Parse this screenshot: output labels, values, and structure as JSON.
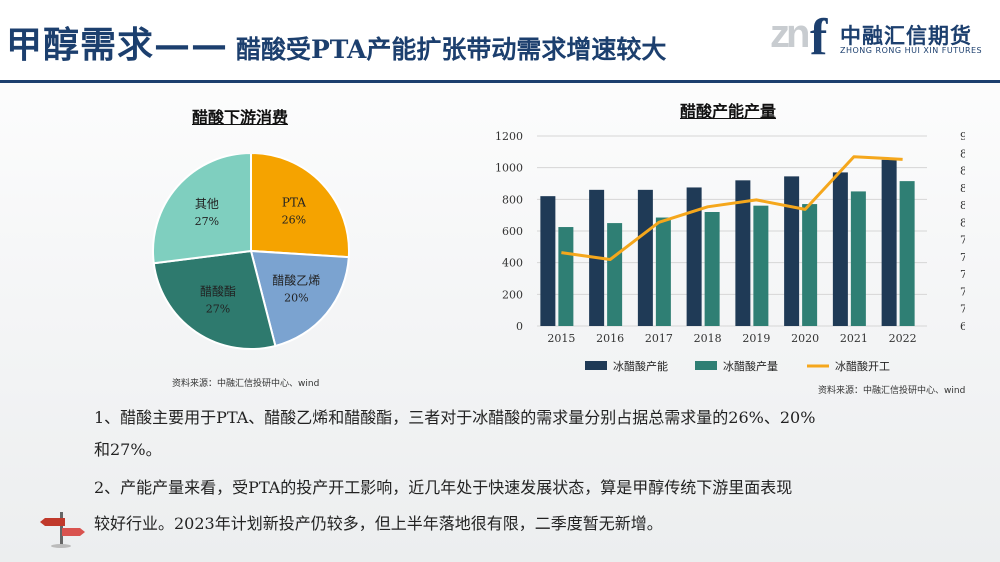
{
  "header": {
    "title_main": "甲醇需求——",
    "title_sub": "醋酸受PTA产能扩张带动需求增速较大",
    "logo_mark": "zn",
    "logo_f": "f",
    "logo_cn": "中融汇信期货",
    "logo_en": "ZHONG RONG HUI XIN FUTURES"
  },
  "pie": {
    "title": "醋酸下游消费",
    "source": "资料来源：中融汇信投研中心、wind"
  },
  "bar": {
    "title": "醋酸产能产量",
    "source": "资料来源：中融汇信投研中心、wind"
  },
  "text": {
    "line1": "1、醋酸主要用于PTA、醋酸乙烯和醋酸酯，三者对于冰醋酸的需求量分别占据总需求量的26%、20%",
    "line2": "和27%。",
    "line3": "2、产能产量来看，受PTA的投产开工影响，近几年处于快速发展状态，算是甲醇传统下游里面表现",
    "line4": "较好行业。2023年计划新投产仍较多，但上半年落地很有限，二季度暂无新增。"
  },
  "colors": {
    "title_blue": "#1c3f6e",
    "pta": "#f5a300",
    "vac": "#7ba3d0",
    "ester": "#2e7a6e",
    "other": "#7fcfbf",
    "capacity": "#1f3a56",
    "output": "#2f7f74",
    "rate": "#f5a71c"
  },
  "chart_data": [
    {
      "type": "pie",
      "title": "醋酸下游消费",
      "slices": [
        {
          "label": "PTA",
          "value": 26,
          "pct_label": "26%",
          "color": "#f5a300"
        },
        {
          "label": "醋酸乙烯",
          "value": 20,
          "pct_label": "20%",
          "color": "#7ba3d0"
        },
        {
          "label": "醋酸酯",
          "value": 27,
          "pct_label": "27%",
          "color": "#2e7a6e"
        },
        {
          "label": "其他",
          "value": 27,
          "pct_label": "27%",
          "color": "#7fcfbf"
        }
      ]
    },
    {
      "type": "bar",
      "title": "醋酸产能产量",
      "categories": [
        "2015",
        "2016",
        "2017",
        "2018",
        "2019",
        "2020",
        "2021",
        "2022"
      ],
      "series": [
        {
          "name": "冰醋酸产能",
          "kind": "bar",
          "axis": "left",
          "color": "#1f3a56",
          "values": [
            820,
            860,
            860,
            875,
            920,
            945,
            970,
            1050
          ]
        },
        {
          "name": "冰醋酸产量",
          "kind": "bar",
          "axis": "left",
          "color": "#2f7f74",
          "values": [
            625,
            650,
            685,
            720,
            760,
            770,
            850,
            915
          ]
        },
        {
          "name": "冰醋酸开工",
          "kind": "line",
          "axis": "right",
          "color": "#f5a71c",
          "values": [
            76.5,
            75.7,
            80.0,
            81.8,
            82.6,
            81.5,
            87.6,
            87.3
          ]
        }
      ],
      "ylim": [
        0,
        1200
      ],
      "yticks": [
        0,
        200,
        400,
        600,
        800,
        1000,
        1200
      ],
      "y2lim": [
        68,
        90
      ],
      "y2ticks": [
        "68%",
        "70%",
        "72%",
        "74%",
        "76%",
        "78%",
        "80%",
        "82%",
        "84%",
        "86%",
        "88%",
        "90%"
      ],
      "legend": "bottom",
      "grid": true
    }
  ]
}
